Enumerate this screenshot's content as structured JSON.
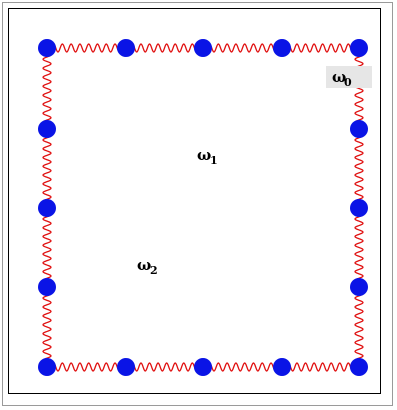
{
  "diagram": {
    "colors": {
      "nearest_spring": "#e01010",
      "diagonal_spring": "#e020e0",
      "node": "#0a14e6",
      "label_box": "#e6e6e6"
    },
    "labels": {
      "omega0": {
        "symbol": "ω",
        "subscript": "0"
      },
      "omega1": {
        "symbol": "ω",
        "subscript": "1"
      },
      "omega2": {
        "symbol": "ω",
        "subscript": "2"
      }
    },
    "lattice": {
      "columns": 5,
      "rows": 5,
      "vacancies": [
        [
          1,
          1
        ],
        [
          1,
          2
        ],
        [
          1,
          3
        ],
        [
          2,
          1
        ],
        [
          2,
          2
        ],
        [
          2,
          3
        ],
        [
          3,
          1
        ],
        [
          3,
          2
        ],
        [
          3,
          3
        ]
      ],
      "present_nodes": [
        [
          0,
          0
        ],
        [
          0,
          1
        ],
        [
          0,
          2
        ],
        [
          0,
          3
        ],
        [
          0,
          4
        ],
        [
          1,
          0
        ],
        [
          1,
          4
        ],
        [
          2,
          0
        ],
        [
          2,
          4
        ],
        [
          3,
          0
        ],
        [
          3,
          4
        ],
        [
          4,
          0
        ],
        [
          4,
          1
        ],
        [
          4,
          2
        ],
        [
          4,
          3
        ],
        [
          4,
          4
        ]
      ]
    }
  }
}
